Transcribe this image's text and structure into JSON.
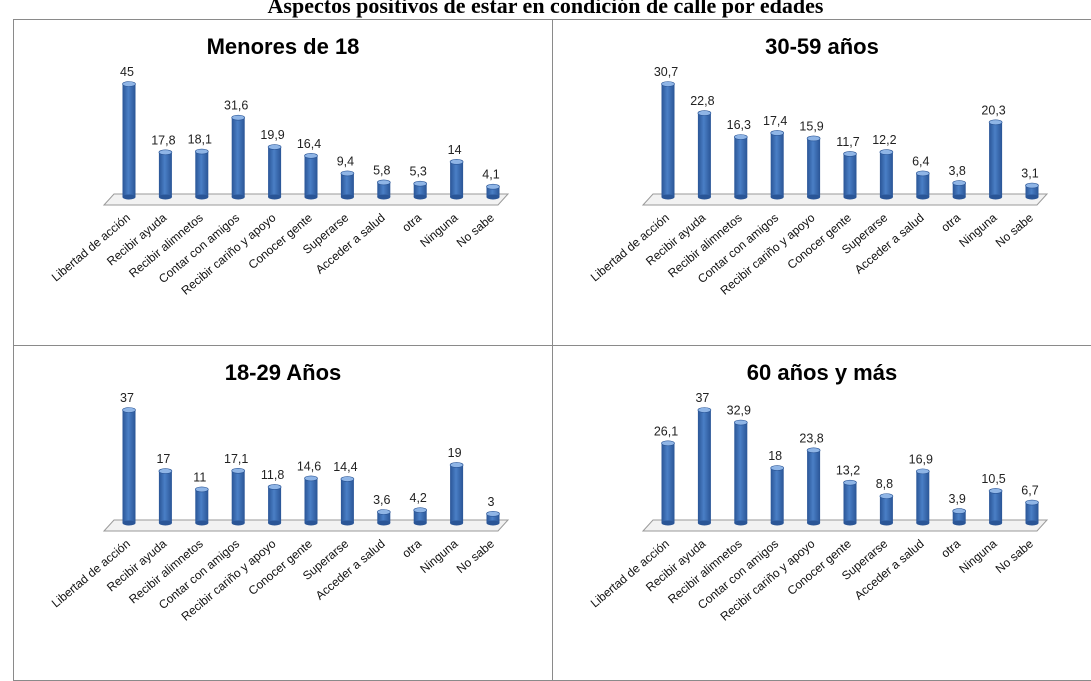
{
  "page": {
    "title": "Aspectos positivos de estar en condición de calle por edades"
  },
  "colors": {
    "bar_main": "#4a7fc6",
    "bar_dark": "#2a5596",
    "bar_light": "#8fb5e6",
    "axis": "#9a9a9a"
  },
  "chart_data": [
    {
      "type": "bar",
      "title": "Menores de 18",
      "categories": [
        "Libertad de acción",
        "Recibir ayuda",
        "Recibir alimnetos",
        "Contar con amigos",
        "Recibir cariño y apoyo",
        "Conocer gente",
        "Superarse",
        "Acceder a salud",
        "otra",
        "Ninguna",
        "No sabe"
      ],
      "values": [
        45,
        17.8,
        18.1,
        31.6,
        19.9,
        16.4,
        9.4,
        5.8,
        5.3,
        14,
        4.1
      ],
      "value_labels": [
        "45",
        "17,8",
        "18,1",
        "31,6",
        "19,9",
        "16,4",
        "9,4",
        "5,8",
        "5,3",
        "14",
        "4,1"
      ],
      "ylim": [
        0,
        45
      ]
    },
    {
      "type": "bar",
      "title": "30-59 años",
      "categories": [
        "Libertad de acción",
        "Recibir ayuda",
        "Recibir alimnetos",
        "Contar con amigos",
        "Recibir cariño y apoyo",
        "Conocer gente",
        "Superarse",
        "Acceder a salud",
        "otra",
        "Ninguna",
        "No sabe"
      ],
      "values": [
        30.7,
        22.8,
        16.3,
        17.4,
        15.9,
        11.7,
        12.2,
        6.4,
        3.8,
        20.3,
        3.1
      ],
      "value_labels": [
        "30,7",
        "22,8",
        "16,3",
        "17,4",
        "15,9",
        "11,7",
        "12,2",
        "6,4",
        "3,8",
        "20,3",
        "3,1"
      ],
      "ylim": [
        0,
        30.7
      ]
    },
    {
      "type": "bar",
      "title": "18-29 Años",
      "categories": [
        "Libertad de acción",
        "Recibir ayuda",
        "Recibir alimnetos",
        "Contar con amigos",
        "Recibir cariño y apoyo",
        "Conocer gente",
        "Superarse",
        "Acceder a salud",
        "otra",
        "Ninguna",
        "No sabe"
      ],
      "values": [
        37,
        17,
        11,
        17.1,
        11.8,
        14.6,
        14.4,
        3.6,
        4.2,
        19,
        3
      ],
      "value_labels": [
        "37",
        "17",
        "11",
        "17,1",
        "11,8",
        "14,6",
        "14,4",
        "3,6",
        "4,2",
        "19",
        "3"
      ],
      "ylim": [
        0,
        37
      ]
    },
    {
      "type": "bar",
      "title": "60 años y más",
      "categories": [
        "Libertad de acción",
        "Recibir ayuda",
        "Recibir alimnetos",
        "Contar con amigos",
        "Recibir cariño y apoyo",
        "Conocer gente",
        "Superarse",
        "Acceder a salud",
        "otra",
        "Ninguna",
        "No sabe"
      ],
      "values": [
        26.1,
        37,
        32.9,
        18,
        23.8,
        13.2,
        8.8,
        16.9,
        3.9,
        10.5,
        6.7
      ],
      "value_labels": [
        "26,1",
        "37",
        "32,9",
        "18",
        "23,8",
        "13,2",
        "8,8",
        "16,9",
        "3,9",
        "10,5",
        "6,7"
      ],
      "ylim": [
        0,
        37
      ]
    }
  ]
}
